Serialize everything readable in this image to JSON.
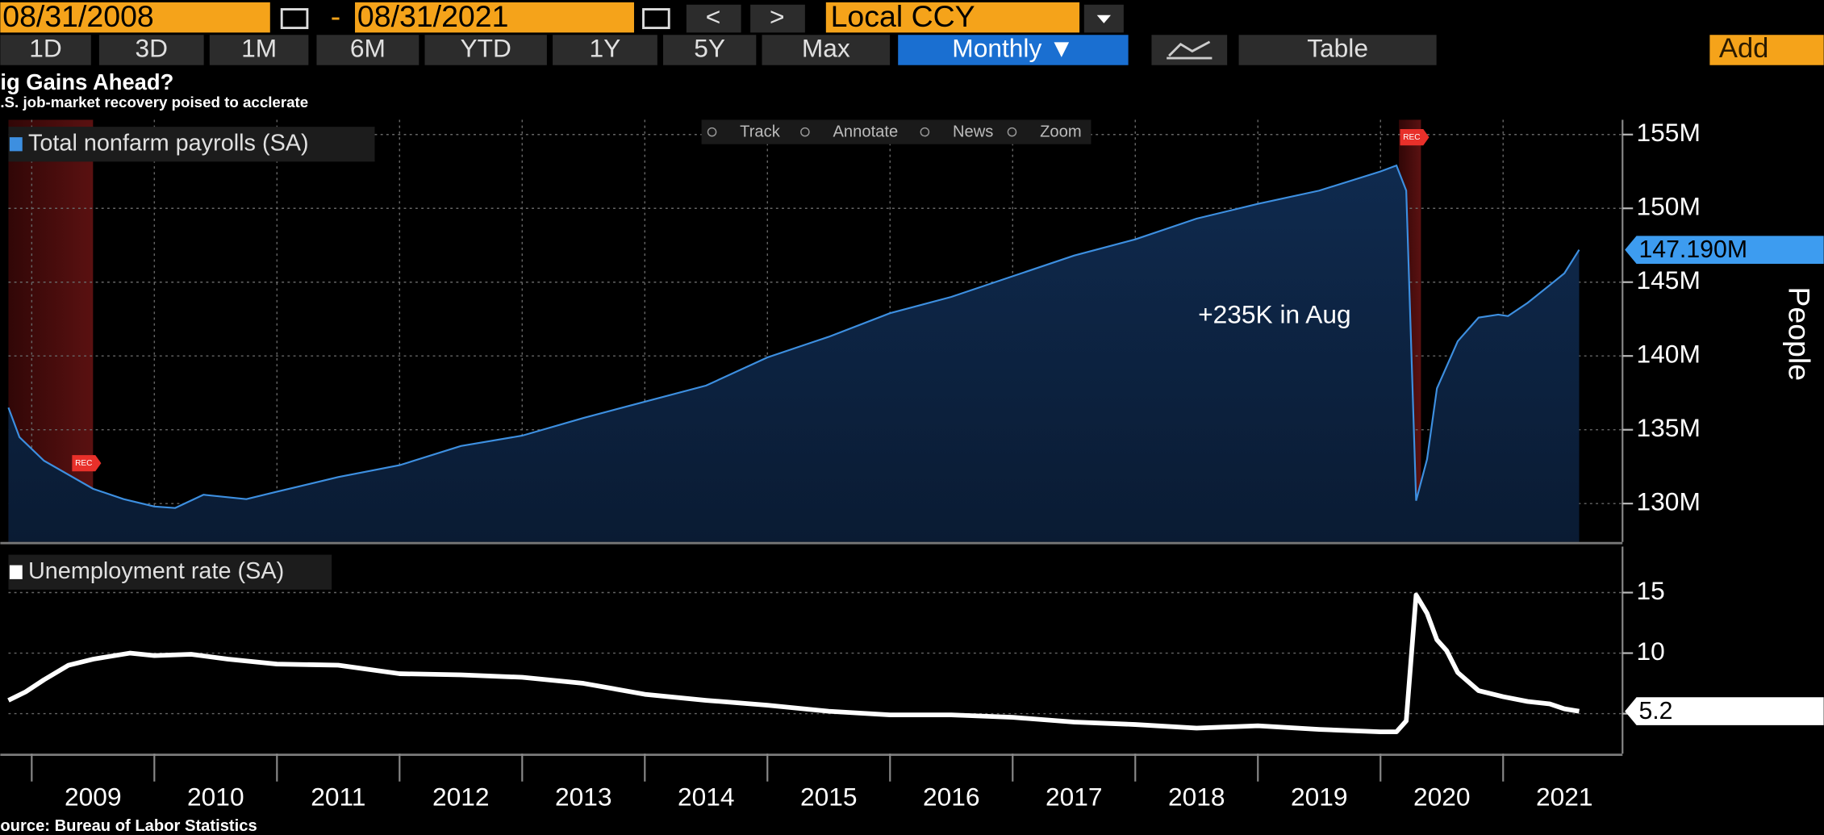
{
  "toolbar": {
    "start_date": "08/31/2008",
    "separator": "-",
    "end_date": "08/31/2021",
    "prev": "<",
    "next": ">",
    "currency": "Local CCY",
    "ranges": [
      "1D",
      "3D",
      "1M",
      "6M",
      "YTD",
      "1Y",
      "5Y",
      "Max"
    ],
    "frequency": "Monthly ▼",
    "table": "Table",
    "add": "Add"
  },
  "header": {
    "title": "ig Gains Ahead?",
    "subtitle": ".S. job-market recovery poised to acclerate"
  },
  "chart_tools": [
    "Track",
    "Annotate",
    "News",
    "Zoom"
  ],
  "chart_data": [
    {
      "type": "area",
      "series": [
        {
          "name": "Total nonfarm payrolls (SA)",
          "color": "#3d8fe0",
          "values": [
            136.5,
            134.5,
            132.9,
            131.0,
            130.3,
            129.8,
            129.7,
            130.6,
            130.3,
            130.8,
            131.8,
            132.6,
            133.9,
            134.6,
            135.8,
            136.9,
            138.0,
            139.9,
            141.3,
            142.9,
            144.0,
            145.4,
            146.8,
            147.9,
            149.3,
            150.3,
            151.2,
            152.5,
            152.9,
            151.2,
            130.2,
            133.0,
            137.8,
            141.0,
            142.6,
            142.8,
            142.7,
            143.6,
            144.8,
            145.6,
            147.19
          ]
        }
      ],
      "x": [
        2008.81,
        2008.9,
        2009.1,
        2009.5,
        2009.75,
        2010.0,
        2010.17,
        2010.4,
        2010.75,
        2011.0,
        2011.5,
        2012.0,
        2012.5,
        2013.0,
        2013.5,
        2014.0,
        2014.5,
        2015.0,
        2015.5,
        2016.0,
        2016.5,
        2017.0,
        2017.5,
        2018.0,
        2018.5,
        2019.0,
        2019.5,
        2020.0,
        2020.13,
        2020.21,
        2020.29,
        2020.38,
        2020.46,
        2020.63,
        2020.8,
        2020.96,
        2021.04,
        2021.2,
        2021.38,
        2021.5,
        2021.62
      ],
      "xlim": [
        2008.81,
        2021.86
      ],
      "xticks": [
        2009,
        2010,
        2011,
        2012,
        2013,
        2014,
        2015,
        2016,
        2017,
        2018,
        2019,
        2020,
        2021
      ],
      "ylim": [
        127.4,
        156
      ],
      "yticks": [
        {
          "value": 130,
          "label": "130M"
        },
        {
          "value": 135,
          "label": "135M"
        },
        {
          "value": 140,
          "label": "140M"
        },
        {
          "value": 145,
          "label": "145M"
        },
        {
          "value": 150,
          "label": "150M"
        },
        {
          "value": 155,
          "label": "155M"
        }
      ],
      "ylabel": "People",
      "grid": true,
      "last_value_label": "147.190M",
      "annotation": "+235K in Aug",
      "shaded_ranges": [
        [
          2008.81,
          2009.5
        ],
        [
          2020.15,
          2020.33
        ]
      ],
      "shaded_label": "REC"
    },
    {
      "type": "line",
      "series": [
        {
          "name": "Unemployment rate (SA)",
          "color": "#ffffff",
          "values": [
            6.1,
            6.8,
            7.8,
            9.0,
            9.5,
            10.0,
            9.8,
            9.9,
            9.5,
            9.1,
            9.0,
            8.3,
            8.2,
            8.0,
            7.5,
            6.6,
            6.1,
            5.7,
            5.2,
            4.9,
            4.9,
            4.7,
            4.3,
            4.1,
            3.8,
            4.0,
            3.7,
            3.5,
            3.5,
            4.4,
            14.8,
            13.3,
            11.1,
            10.2,
            8.4,
            6.9,
            6.4,
            6.0,
            5.8,
            5.4,
            5.2
          ]
        }
      ],
      "x": [
        2008.81,
        2008.95,
        2009.1,
        2009.3,
        2009.5,
        2009.8,
        2010.0,
        2010.3,
        2010.6,
        2011.0,
        2011.5,
        2012.0,
        2012.5,
        2013.0,
        2013.5,
        2014.0,
        2014.5,
        2015.0,
        2015.5,
        2016.0,
        2016.5,
        2017.0,
        2017.5,
        2018.0,
        2018.5,
        2019.0,
        2019.5,
        2020.0,
        2020.13,
        2020.21,
        2020.29,
        2020.38,
        2020.46,
        2020.54,
        2020.63,
        2020.8,
        2021.0,
        2021.2,
        2021.38,
        2021.5,
        2021.62
      ],
      "xlim": [
        2008.81,
        2021.86
      ],
      "xticks": [
        2009,
        2010,
        2011,
        2012,
        2013,
        2014,
        2015,
        2016,
        2017,
        2018,
        2019,
        2020,
        2021
      ],
      "ylim": [
        1.7,
        18.8
      ],
      "yticks": [
        5,
        10,
        15
      ],
      "grid": true,
      "last_value_label": "5.2"
    }
  ],
  "footer": {
    "source": "ource: Bureau of Labor Statistics"
  }
}
